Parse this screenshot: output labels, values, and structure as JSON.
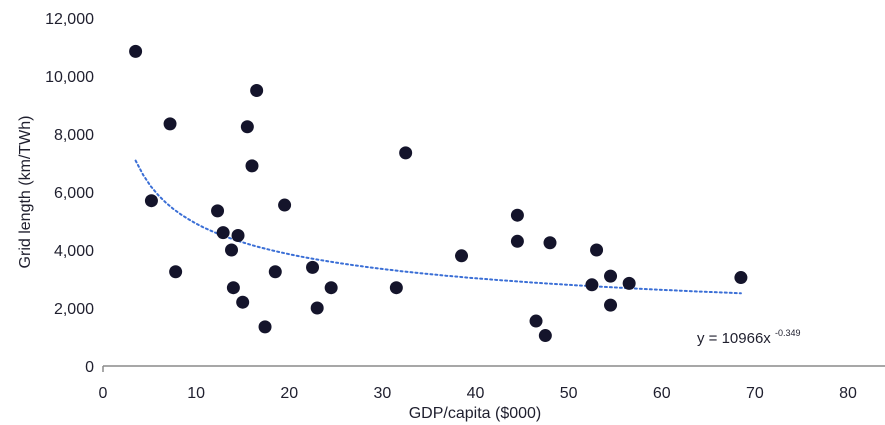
{
  "chart_data": {
    "type": "scatter",
    "xlabel": "GDP/capita ($000)",
    "ylabel": "Grid length (km/TWh)",
    "xlim": [
      0,
      80
    ],
    "ylim": [
      0,
      12000
    ],
    "xticks": [
      "0",
      "10",
      "20",
      "30",
      "40",
      "50",
      "60",
      "70",
      "80"
    ],
    "yticks": [
      "0",
      "2,000",
      "4,000",
      "6,000",
      "8,000",
      "10,000",
      "12,000"
    ],
    "grid": false,
    "legend": "none",
    "colors": {
      "points": "#14142b",
      "trendline": "#3b6fd6",
      "axis": "#8a8a8a",
      "text": "#1f1f2e"
    },
    "series": [
      {
        "points": [
          [
            3.5,
            10850
          ],
          [
            5.2,
            5700
          ],
          [
            7.2,
            8350
          ],
          [
            7.8,
            3250
          ],
          [
            12.3,
            5350
          ],
          [
            12.9,
            4600
          ],
          [
            13.8,
            4000
          ],
          [
            14.0,
            2700
          ],
          [
            14.5,
            4500
          ],
          [
            15.0,
            2200
          ],
          [
            15.5,
            8250
          ],
          [
            16.0,
            6900
          ],
          [
            16.5,
            9500
          ],
          [
            17.4,
            1350
          ],
          [
            18.5,
            3250
          ],
          [
            19.5,
            5550
          ],
          [
            22.5,
            3400
          ],
          [
            23.0,
            2000
          ],
          [
            24.5,
            2700
          ],
          [
            31.5,
            2700
          ],
          [
            32.5,
            7350
          ],
          [
            38.5,
            3800
          ],
          [
            44.5,
            5200
          ],
          [
            44.5,
            4300
          ],
          [
            46.5,
            1550
          ],
          [
            47.5,
            1050
          ],
          [
            48.0,
            4250
          ],
          [
            52.5,
            2800
          ],
          [
            53.0,
            4000
          ],
          [
            54.5,
            3100
          ],
          [
            54.5,
            2100
          ],
          [
            56.5,
            2850
          ],
          [
            68.5,
            3050
          ]
        ]
      }
    ],
    "trendline": {
      "type": "power",
      "a": 10966,
      "b": -0.349,
      "x_range": [
        3.5,
        68.5
      ],
      "style": "dotted"
    },
    "annotation": {
      "base": "y = 10966x",
      "exponent": "-0.349"
    }
  }
}
